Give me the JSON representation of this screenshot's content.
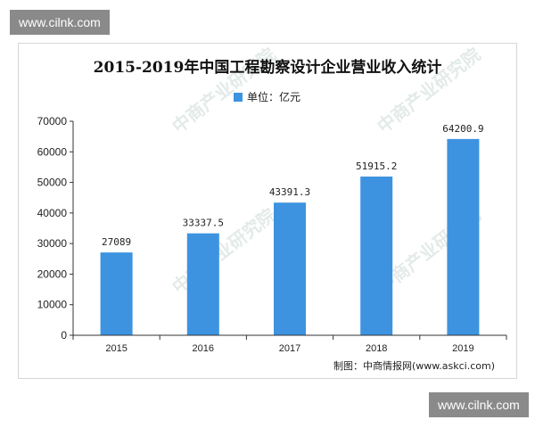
{
  "watermark": {
    "site": "www.cilnk.com"
  },
  "chart_data": {
    "type": "bar",
    "title": "2015-2019年中国工程勘察设计企业营业收入统计",
    "categories": [
      "2015",
      "2016",
      "2017",
      "2018",
      "2019"
    ],
    "series": [
      {
        "name": "单位：亿元",
        "values": [
          27089,
          33337.5,
          43391.3,
          51915.2,
          64200.9
        ],
        "color": "#3d93e0"
      }
    ],
    "data_labels": [
      "27089",
      "33337.5",
      "43391.3",
      "51915.2",
      "64200.9"
    ],
    "ylim": [
      0,
      70000
    ],
    "yticks": [
      0,
      10000,
      20000,
      30000,
      40000,
      50000,
      60000,
      70000
    ],
    "xlabel": "",
    "ylabel": "",
    "legend_position": "top-center",
    "grid": false,
    "source": "制图：中商情报网(www.askci.com)"
  }
}
